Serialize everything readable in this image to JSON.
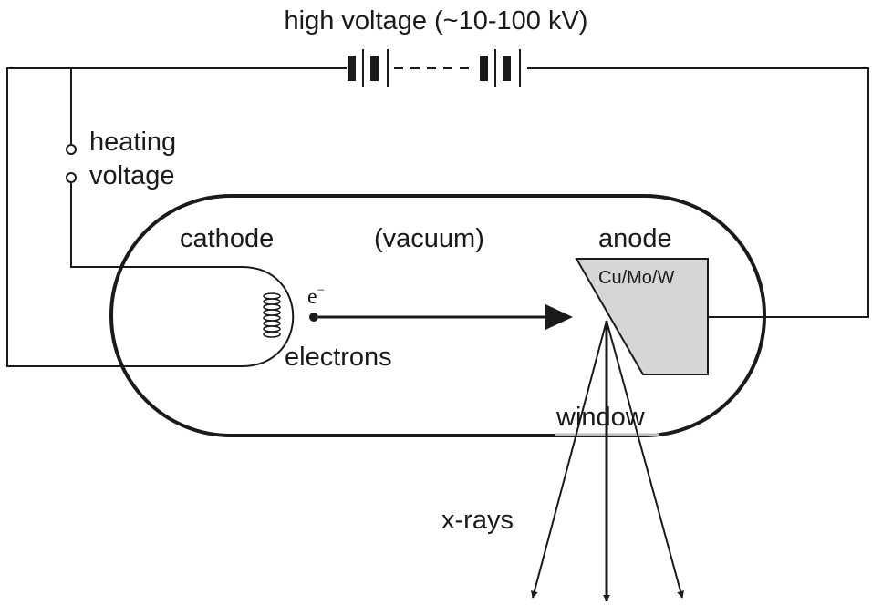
{
  "labels": {
    "high_voltage": "high voltage (~10-100 kV)",
    "heating": "heating",
    "voltage": "voltage",
    "cathode": "cathode",
    "vacuum": "(vacuum)",
    "anode": "anode",
    "anode_material": "Cu/Mo/W",
    "electron_symbol": "e",
    "electron_charge": "−",
    "electrons": "electrons",
    "window": "window",
    "xrays": "x-rays"
  },
  "colors": {
    "line": "#1a1a1a",
    "anode_fill": "#d6d6d6",
    "background": "#ffffff"
  }
}
